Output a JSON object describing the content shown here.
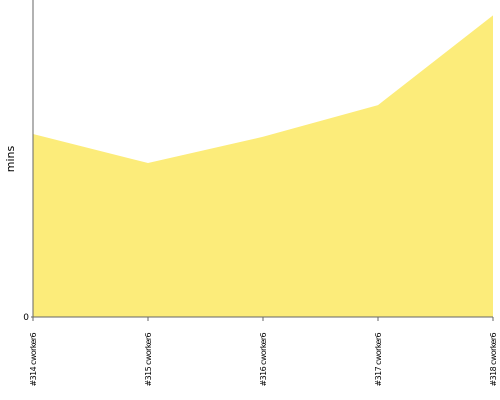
{
  "chart_data": {
    "type": "area",
    "y_label": "mins",
    "categories": [
      "#314 cworker6",
      "#315 cworker6",
      "#316 cworker6",
      "#317 cworker6",
      "#318 cworker6"
    ],
    "values": [
      2.02,
      1.7,
      1.99,
      2.34,
      3.33
    ],
    "color": "#fcec7a",
    "ylim": [
      0,
      3.5
    ],
    "yticks": [
      0
    ]
  }
}
